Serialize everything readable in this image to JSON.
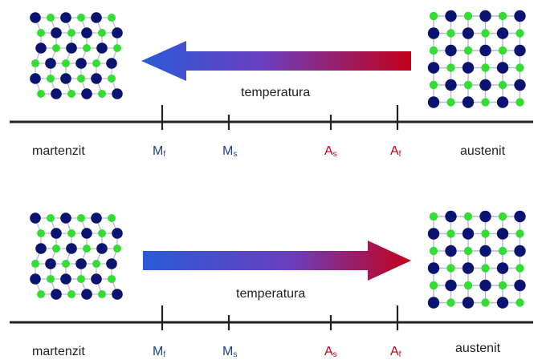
{
  "colors": {
    "cold": "#2a5bd7",
    "hot": "#c4001a",
    "atom_dark": "#0a1470",
    "atom_light": "#33dd33",
    "line": "#222222",
    "m_text": "#1d3f8a",
    "a_text": "#c4001a"
  },
  "panels": [
    {
      "direction": "left",
      "temperature_label": "temperatura",
      "left_label": "martenzit",
      "right_label": "austenit",
      "markers": [
        {
          "base": "M",
          "sub": "f",
          "type": "m"
        },
        {
          "base": "M",
          "sub": "s",
          "type": "m"
        },
        {
          "base": "A",
          "sub": "s",
          "type": "a"
        },
        {
          "base": "A",
          "sub": "f",
          "type": "a"
        }
      ]
    },
    {
      "direction": "right",
      "temperature_label": "temperatura",
      "left_label": "martenzit",
      "right_label": "austenit",
      "markers": [
        {
          "base": "M",
          "sub": "f",
          "type": "m"
        },
        {
          "base": "M",
          "sub": "s",
          "type": "m"
        },
        {
          "base": "A",
          "sub": "s",
          "type": "a"
        },
        {
          "base": "A",
          "sub": "f",
          "type": "a"
        }
      ]
    }
  ]
}
